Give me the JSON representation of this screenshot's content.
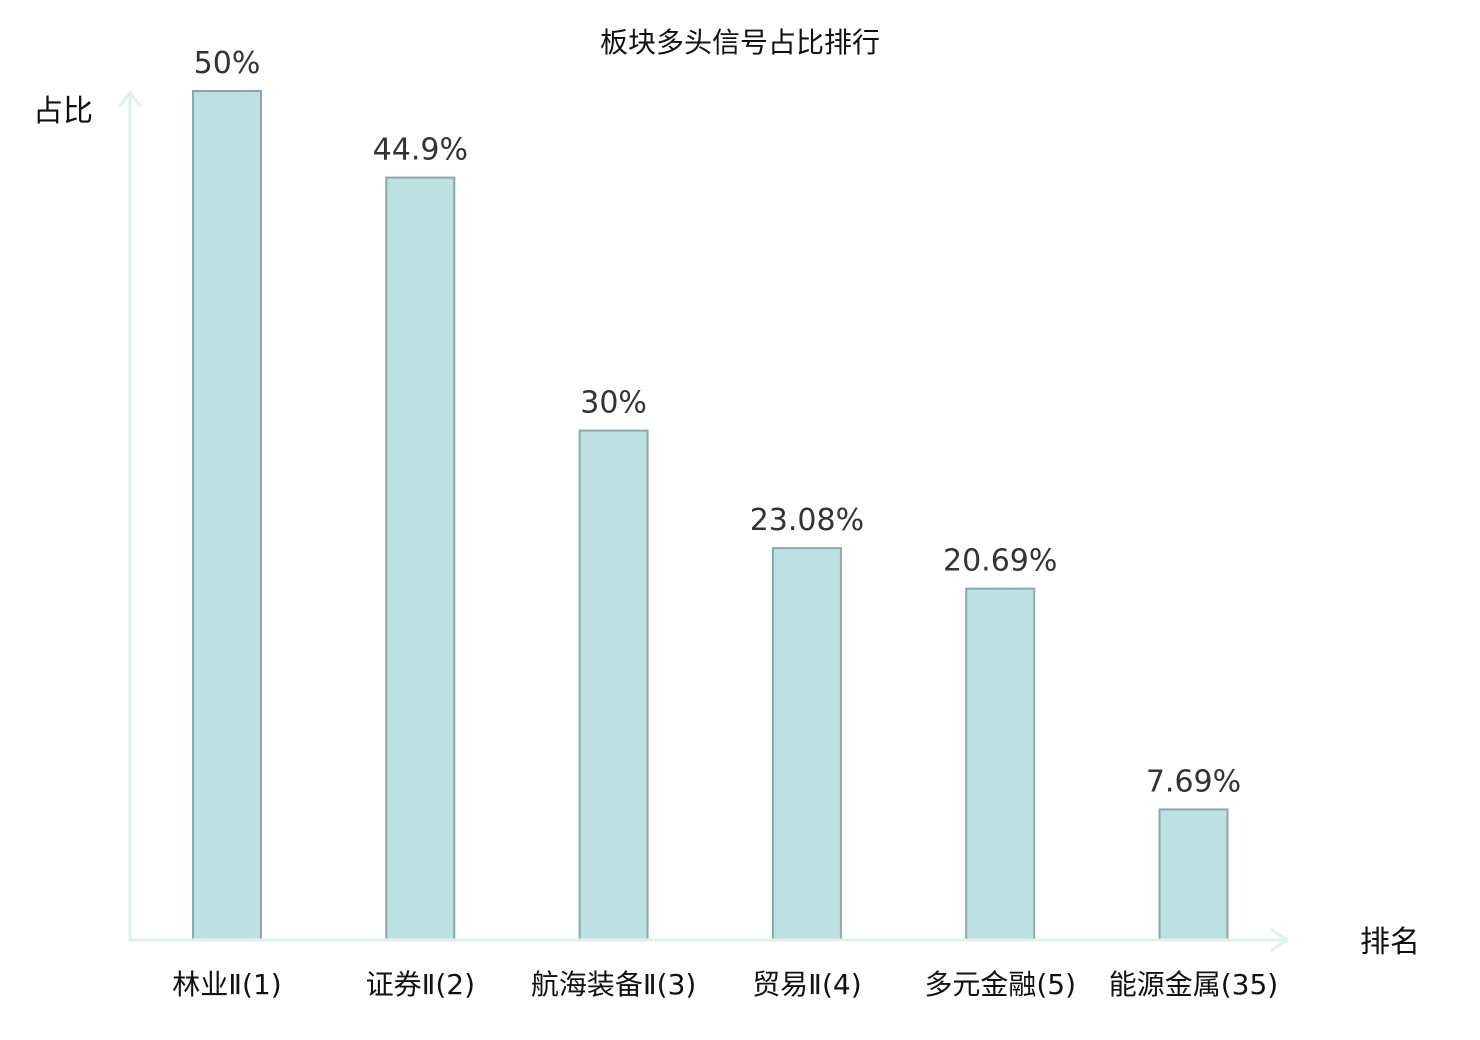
{
  "chart_data": {
    "type": "bar",
    "title": "板块多头信号占比排行",
    "ylabel": "占比",
    "xlabel": "排名",
    "ylim": [
      0,
      50
    ],
    "grid": false,
    "legend": "none",
    "categories": [
      "林业Ⅱ(1)",
      "证券Ⅱ(2)",
      "航海装备Ⅱ(3)",
      "贸易Ⅱ(4)",
      "多元金融(5)",
      "能源金属(35)"
    ],
    "values": [
      50,
      44.9,
      30,
      23.08,
      20.69,
      7.69
    ],
    "value_labels": [
      "50%",
      "44.9%",
      "30%",
      "23.08%",
      "20.69%",
      "7.69%"
    ],
    "highlight_index": 5,
    "colors": {
      "bar_fill": "#bde0e3",
      "bar_stroke": "#8aa8ab",
      "axis": "#dff0ee",
      "highlight_text": "#e00000",
      "text": "#111111",
      "value_text": "#333333"
    }
  }
}
